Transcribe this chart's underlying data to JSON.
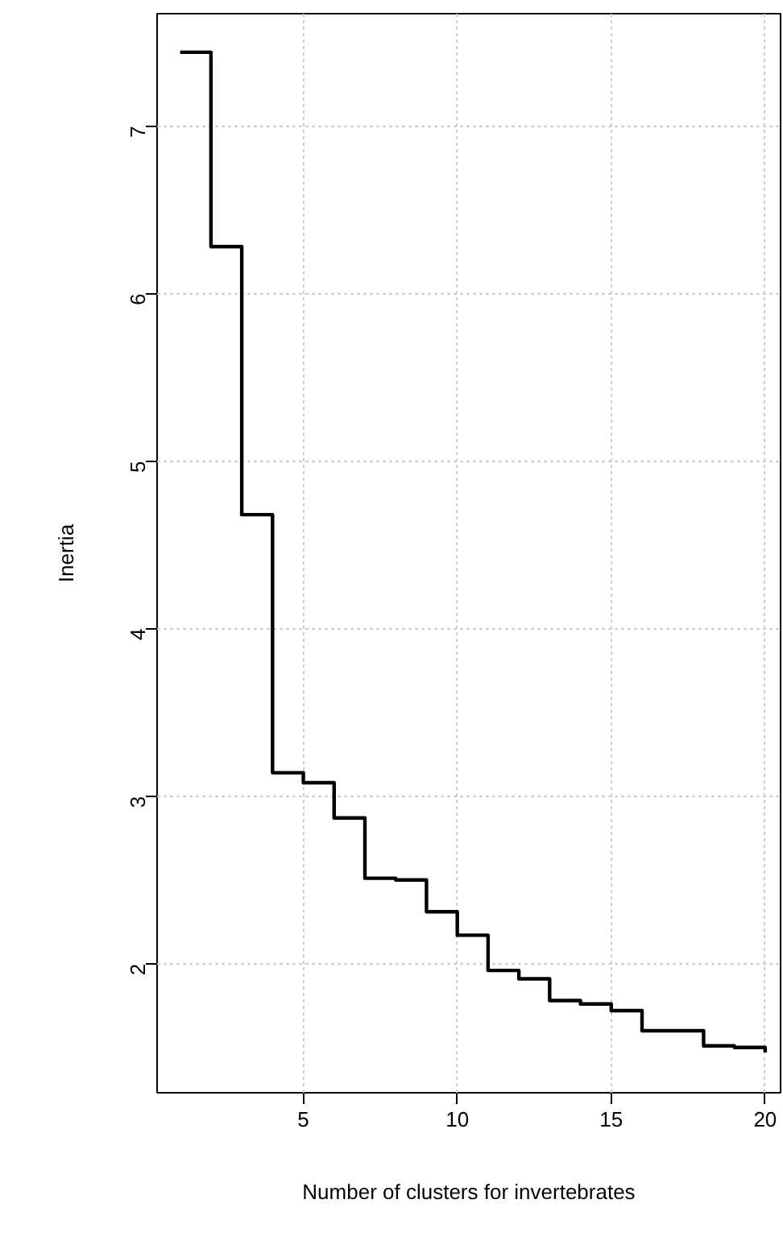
{
  "chart_data": {
    "type": "step",
    "xlabel": "Number of clusters for invertebrates",
    "ylabel": "Inertia",
    "x": [
      1,
      2,
      3,
      4,
      5,
      6,
      7,
      8,
      9,
      10,
      11,
      12,
      13,
      14,
      15,
      16,
      17,
      18,
      19,
      20
    ],
    "series": [
      {
        "color": "#000000",
        "values": [
          7.44,
          6.28,
          4.68,
          3.14,
          3.08,
          2.87,
          2.51,
          2.5,
          2.31,
          2.17,
          1.96,
          1.91,
          1.78,
          1.76,
          1.72,
          1.6,
          1.6,
          1.51,
          1.5,
          1.47
        ]
      }
    ],
    "xlim": [
      0.25,
      20.5
    ],
    "ylim": [
      1.23,
      7.67
    ],
    "xticks": [
      5,
      10,
      15,
      20
    ],
    "yticks": [
      2,
      3,
      4,
      5,
      6,
      7
    ],
    "grid": true,
    "marker": "none",
    "line_style": "solid"
  }
}
